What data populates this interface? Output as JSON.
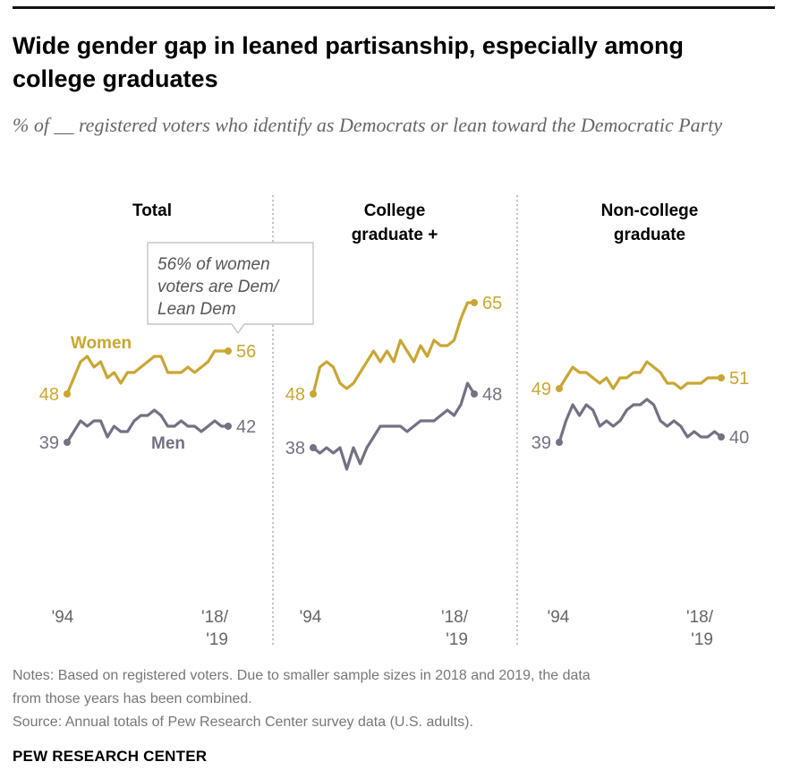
{
  "title": "Wide gender gap in leaned partisanship, especially among college graduates",
  "subtitle": "% of __ registered voters who identify as Democrats or lean toward the Democratic Party",
  "notes": [
    "Notes: Based on registered voters. Due to smaller sample sizes in 2018 and 2019, the data",
    "from those years has been combined.",
    "Source: Annual totals of Pew Research Center survey data (U.S. adults)."
  ],
  "brand": "PEW RESEARCH CENTER",
  "colors": {
    "women": "#C9A633",
    "men": "#757083",
    "axis_text": "#666666",
    "divider": "#999999"
  },
  "series_labels": {
    "women": "Women",
    "men": "Men"
  },
  "callout": "56% of women voters are Dem/ Lean Dem",
  "chart_data": [
    {
      "type": "line",
      "panel_title": "Total",
      "x_tick_labels": [
        "'94",
        "'18/ '19"
      ],
      "ylim": [
        20,
        80
      ],
      "x": [
        "1994",
        "1995",
        "1996",
        "1997",
        "1998",
        "1999",
        "2000",
        "2001",
        "2002",
        "2003",
        "2004",
        "2005",
        "2006",
        "2007",
        "2008",
        "2009",
        "2010",
        "2011",
        "2012",
        "2013",
        "2014",
        "2015",
        "2016",
        "2017",
        "2018/19"
      ],
      "series": [
        {
          "name": "Women",
          "values": [
            48,
            51,
            54,
            55,
            53,
            54,
            51,
            52,
            50,
            52,
            52,
            53,
            54,
            55,
            55,
            52,
            52,
            52,
            53,
            52,
            53,
            54,
            56,
            56,
            56
          ],
          "start_label": "48",
          "end_label": "56"
        },
        {
          "name": "Men",
          "values": [
            39,
            41,
            43,
            42,
            43,
            43,
            40,
            42,
            41,
            41,
            43,
            44,
            44,
            45,
            44,
            42,
            42,
            43,
            42,
            42,
            41,
            42,
            43,
            42,
            42
          ],
          "start_label": "39",
          "end_label": "42"
        }
      ]
    },
    {
      "type": "line",
      "panel_title": "College graduate +",
      "x_tick_labels": [
        "'94",
        "'18/ '19"
      ],
      "ylim": [
        20,
        80
      ],
      "x": [
        "1994",
        "1995",
        "1996",
        "1997",
        "1998",
        "1999",
        "2000",
        "2001",
        "2002",
        "2003",
        "2004",
        "2005",
        "2006",
        "2007",
        "2008",
        "2009",
        "2010",
        "2011",
        "2012",
        "2013",
        "2014",
        "2015",
        "2016",
        "2017",
        "2018/19"
      ],
      "series": [
        {
          "name": "Women",
          "values": [
            48,
            53,
            54,
            53,
            50,
            49,
            50,
            52,
            54,
            56,
            54,
            56,
            54,
            58,
            56,
            54,
            57,
            55,
            58,
            57,
            57,
            58,
            62,
            65,
            65
          ],
          "start_label": "48",
          "end_label": "65"
        },
        {
          "name": "Men",
          "values": [
            38,
            37,
            38,
            37,
            38,
            34,
            38,
            35,
            38,
            40,
            42,
            42,
            42,
            42,
            41,
            42,
            43,
            43,
            43,
            44,
            45,
            44,
            46,
            50,
            48
          ],
          "start_label": "38",
          "end_label": "48"
        }
      ]
    },
    {
      "type": "line",
      "panel_title": "Non-college graduate",
      "x_tick_labels": [
        "'94",
        "'18/ '19"
      ],
      "ylim": [
        20,
        80
      ],
      "x": [
        "1994",
        "1995",
        "1996",
        "1997",
        "1998",
        "1999",
        "2000",
        "2001",
        "2002",
        "2003",
        "2004",
        "2005",
        "2006",
        "2007",
        "2008",
        "2009",
        "2010",
        "2011",
        "2012",
        "2013",
        "2014",
        "2015",
        "2016",
        "2017",
        "2018/19"
      ],
      "series": [
        {
          "name": "Women",
          "values": [
            49,
            51,
            53,
            52,
            52,
            51,
            50,
            51,
            49,
            51,
            51,
            52,
            52,
            54,
            53,
            52,
            50,
            50,
            49,
            50,
            50,
            50,
            51,
            51,
            51
          ],
          "start_label": "49",
          "end_label": "51"
        },
        {
          "name": "Men",
          "values": [
            39,
            43,
            46,
            44,
            46,
            45,
            42,
            43,
            42,
            43,
            45,
            46,
            46,
            47,
            46,
            43,
            42,
            43,
            42,
            40,
            41,
            40,
            40,
            41,
            40
          ],
          "start_label": "39",
          "end_label": "40"
        }
      ]
    }
  ]
}
